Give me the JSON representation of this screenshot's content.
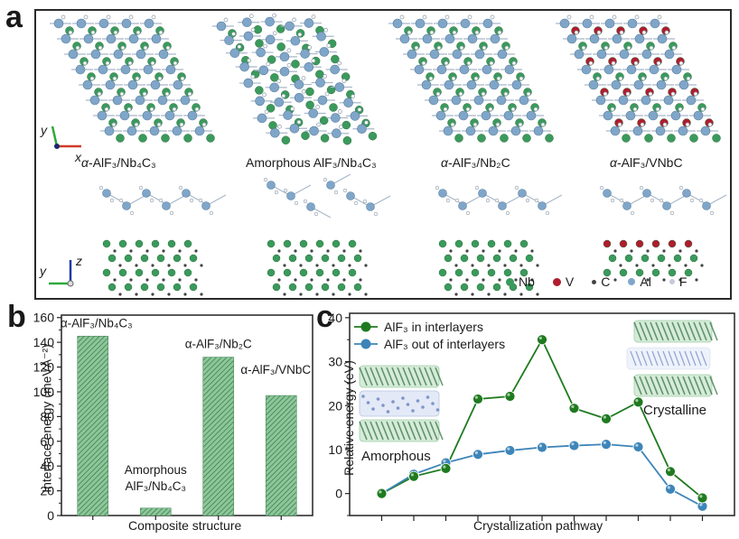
{
  "panel_labels": {
    "a": "a",
    "b": "b",
    "c": "c"
  },
  "panel_a": {
    "structures": [
      {
        "label_prefix": "α",
        "label": "-AlF₃/Nb₄C₃",
        "name": "alpha-AlF3/Nb4C3"
      },
      {
        "label_prefix": "",
        "label": "Amorphous AlF₃/Nb₄C₃",
        "name": "Amorphous AlF3/Nb4C3"
      },
      {
        "label_prefix": "α",
        "label": "-AlF₃/Nb₂C",
        "name": "alpha-AlF3/Nb2C"
      },
      {
        "label_prefix": "α",
        "label": "-AlF₃/VNbC",
        "name": "alpha-AlF3/VNbC"
      }
    ],
    "axes_top": {
      "vertical": "y",
      "horizontal": "x"
    },
    "axes_bottom": {
      "vertical": "z",
      "horizontal": "y"
    },
    "element_legend": [
      {
        "symbol": "Nb",
        "color": "#3a9a5c"
      },
      {
        "symbol": "V",
        "color": "#b01c2e"
      },
      {
        "symbol": "C",
        "color": "#444444"
      },
      {
        "symbol": "Al",
        "color": "#7fa6c9"
      },
      {
        "symbol": "F",
        "color": "#c4cbd6"
      }
    ]
  },
  "chart_data": [
    {
      "type": "bar",
      "panel": "b",
      "title": "",
      "xlabel": "Composite structure",
      "ylabel": "Interface energy (meVÅ⁻²)",
      "categories": [
        "α-AlF₃/Nb₄C₃",
        "Amorphous AlF₃/Nb₄C₃",
        "α-AlF₃/Nb₂C",
        "α-AlF₃/VNbC"
      ],
      "bar_labels": [
        [
          "α-AlF₃/Nb₄C₃"
        ],
        [
          "Amorphous",
          "AlF₃/Nb₄C₃"
        ],
        [
          "α-AlF₃/Nb₂C"
        ],
        [
          "α-AlF₃/VNbC"
        ]
      ],
      "values": [
        145,
        6,
        128,
        97
      ],
      "ylim": [
        0,
        162
      ],
      "yticks": [
        0,
        20,
        40,
        60,
        80,
        100,
        120,
        140,
        160
      ],
      "bar_color": "#8cc79a",
      "hatch_color": "#2f6e3f",
      "grid": false
    },
    {
      "type": "line",
      "panel": "c",
      "title": "",
      "xlabel": "Crystallization pathway",
      "ylabel": "Relative energy (eV)",
      "x": [
        1,
        2,
        3,
        4,
        5,
        6,
        7,
        8,
        9,
        10,
        11
      ],
      "xlim": [
        0,
        12
      ],
      "ylim": [
        -5,
        41
      ],
      "yticks": [
        0,
        10,
        20,
        30,
        40
      ],
      "series": [
        {
          "name": "AlF₃ in interlayers",
          "color": "#1f7a1f",
          "values": [
            0,
            3.9,
            5.7,
            21.5,
            22.1,
            35.0,
            19.4,
            17.0,
            20.8,
            5.0,
            -1.0
          ]
        },
        {
          "name": "AlF₃ out of interlayers",
          "color": "#3d85b8",
          "values": [
            0,
            4.4,
            7.0,
            8.9,
            9.8,
            10.5,
            10.9,
            11.2,
            10.6,
            1.0,
            -2.9
          ]
        }
      ],
      "legend_position": "top-left",
      "annotations": [
        "Amorphous",
        "Crystalline"
      ],
      "grid": false
    }
  ]
}
